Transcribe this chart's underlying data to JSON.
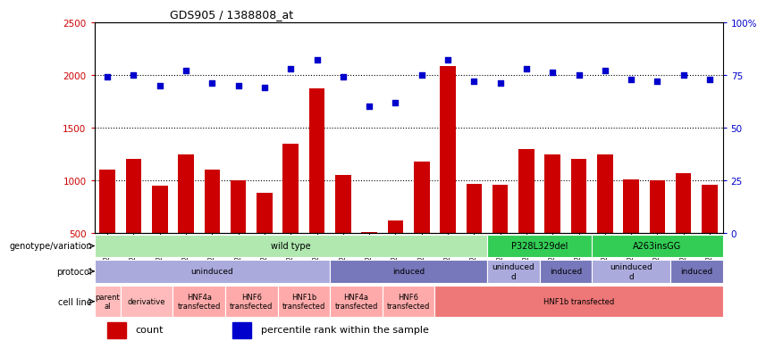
{
  "title": "GDS905 / 1388808_at",
  "samples": [
    "GSM27203",
    "GSM27204",
    "GSM27205",
    "GSM27206",
    "GSM27207",
    "GSM27150",
    "GSM27152",
    "GSM27156",
    "GSM27159",
    "GSM27063",
    "GSM27148",
    "GSM27151",
    "GSM27153",
    "GSM27157",
    "GSM27160",
    "GSM27147",
    "GSM27149",
    "GSM27161",
    "GSM27165",
    "GSM27163",
    "GSM27167",
    "GSM27169",
    "GSM27171",
    "GSM27172"
  ],
  "counts": [
    1100,
    1200,
    950,
    1250,
    1100,
    1000,
    880,
    1350,
    1870,
    1050,
    510,
    620,
    1180,
    2080,
    970,
    960,
    1300,
    1250,
    1200,
    1250,
    1010,
    1000,
    1070,
    960
  ],
  "percentile": [
    74,
    75,
    70,
    77,
    71,
    70,
    69,
    78,
    82,
    74,
    60,
    62,
    75,
    82,
    72,
    71,
    78,
    76,
    75,
    77,
    73,
    72,
    75,
    73
  ],
  "ylim_left": [
    500,
    2500
  ],
  "ylim_right": [
    0,
    100
  ],
  "yticks_left": [
    500,
    1000,
    1500,
    2000,
    2500
  ],
  "yticks_right": [
    0,
    25,
    50,
    75,
    100
  ],
  "bar_color": "#cc0000",
  "dot_color": "#0000cc",
  "genotype_groups": [
    {
      "label": "wild type",
      "start": 0,
      "end": 15,
      "color": "#b0e8b0"
    },
    {
      "label": "P328L329del",
      "start": 15,
      "end": 19,
      "color": "#33cc55"
    },
    {
      "label": "A263insGG",
      "start": 19,
      "end": 24,
      "color": "#33cc55"
    }
  ],
  "protocol_groups": [
    {
      "label": "uninduced",
      "start": 0,
      "end": 9,
      "color": "#aaaadd"
    },
    {
      "label": "induced",
      "start": 9,
      "end": 15,
      "color": "#7777bb"
    },
    {
      "label": "uninduced\nd",
      "start": 15,
      "end": 17,
      "color": "#aaaadd"
    },
    {
      "label": "induced",
      "start": 17,
      "end": 19,
      "color": "#7777bb"
    },
    {
      "label": "uninduced\nd",
      "start": 19,
      "end": 22,
      "color": "#aaaadd"
    },
    {
      "label": "induced",
      "start": 22,
      "end": 24,
      "color": "#7777bb"
    }
  ],
  "cellline_groups": [
    {
      "label": "parent\nal",
      "start": 0,
      "end": 1,
      "color": "#ffbbbb"
    },
    {
      "label": "derivative",
      "start": 1,
      "end": 3,
      "color": "#ffbbbb"
    },
    {
      "label": "HNF4a\ntransfected",
      "start": 3,
      "end": 5,
      "color": "#ffaaaa"
    },
    {
      "label": "HNF6\ntransfected",
      "start": 5,
      "end": 7,
      "color": "#ffaaaa"
    },
    {
      "label": "HNF1b\ntransfected",
      "start": 7,
      "end": 9,
      "color": "#ffaaaa"
    },
    {
      "label": "HNF4a\ntransfected",
      "start": 9,
      "end": 11,
      "color": "#ffaaaa"
    },
    {
      "label": "HNF6\ntransfected",
      "start": 11,
      "end": 13,
      "color": "#ffaaaa"
    },
    {
      "label": "HNF1b transfected",
      "start": 13,
      "end": 24,
      "color": "#ee7777"
    }
  ],
  "bg_color": "#ffffff"
}
